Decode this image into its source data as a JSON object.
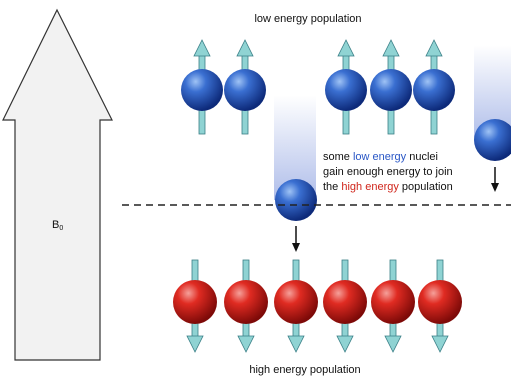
{
  "labels": {
    "top": "low energy population",
    "bottom": "high energy population"
  },
  "field": {
    "symbol": "B",
    "subscript": "0"
  },
  "note": {
    "line1": {
      "a": "some ",
      "b": "low energy",
      "c": " nuclei"
    },
    "line2": "gain enough energy to join",
    "line3": {
      "a": "the ",
      "b": "high energy",
      "c": " population"
    }
  }
}
